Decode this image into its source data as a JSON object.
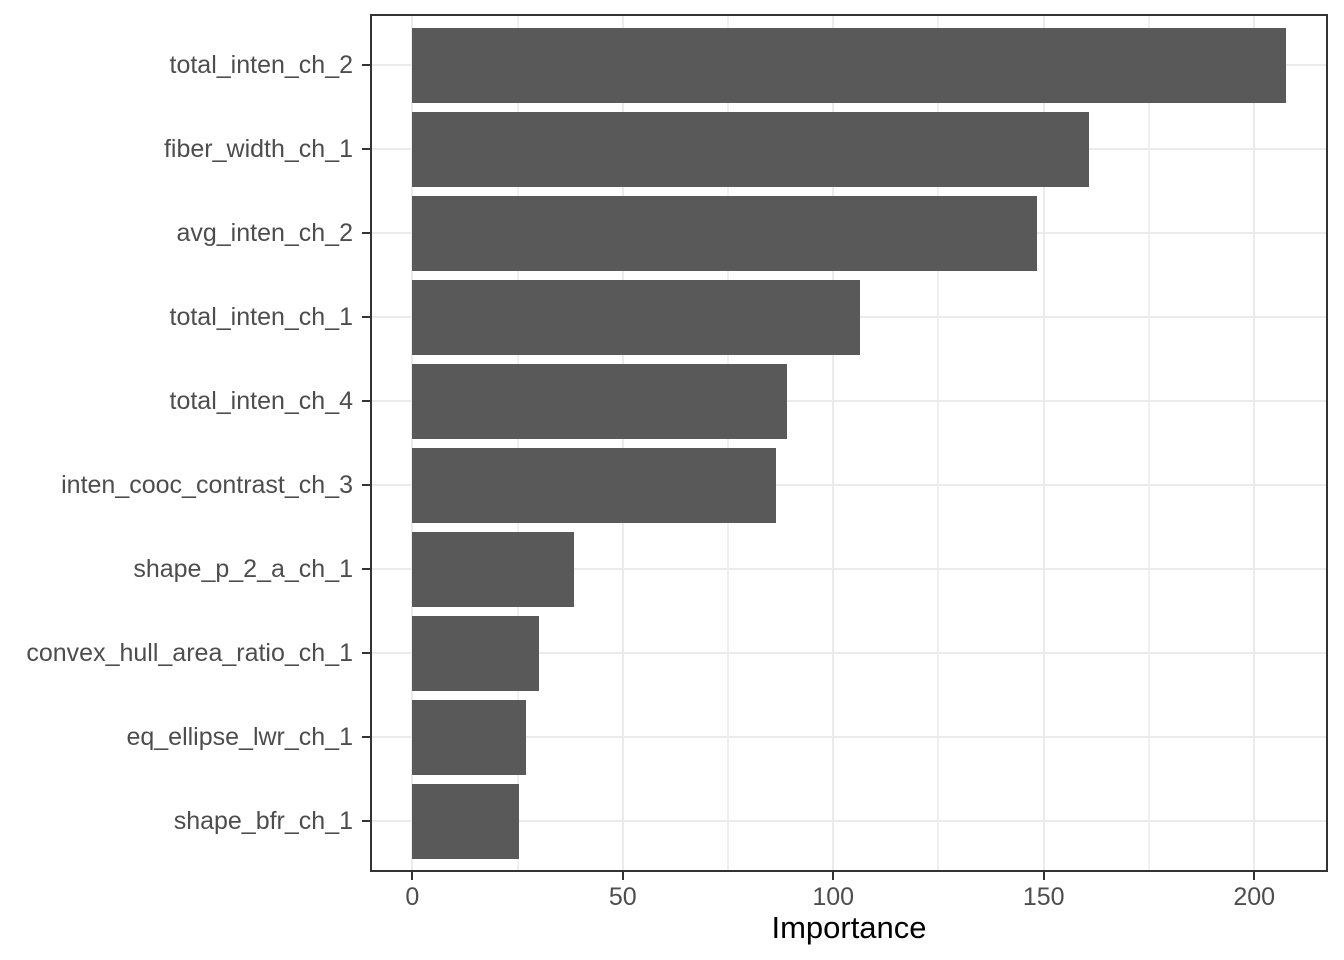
{
  "chart_data": {
    "type": "bar",
    "orientation": "horizontal",
    "title": "",
    "xlabel": "Importance",
    "ylabel": "",
    "categories": [
      "total_inten_ch_2",
      "fiber_width_ch_1",
      "avg_inten_ch_2",
      "total_inten_ch_1",
      "total_inten_ch_4",
      "inten_cooc_contrast_ch_3",
      "shape_p_2_a_ch_1",
      "convex_hull_area_ratio_ch_1",
      "eq_ellipse_lwr_ch_1",
      "shape_bfr_ch_1"
    ],
    "values": [
      207.6,
      160.8,
      148.4,
      106.4,
      89.0,
      86.4,
      38.4,
      30.0,
      27.1,
      25.3
    ],
    "x_ticks": [
      "0",
      "50",
      "100",
      "150",
      "200"
    ],
    "x_tick_values": [
      0,
      50,
      100,
      150,
      200
    ],
    "x_minor_tick_values": [
      25,
      75,
      125,
      175
    ],
    "xlim": [
      -10.5,
      217.7
    ],
    "grid": true,
    "legend": false,
    "colors": {
      "bar": "#595959",
      "grid_major": "#EBEBEB",
      "grid_minor": "#F0F0F0",
      "panel_border": "#333333",
      "tick": "#333333",
      "tick_label": "#4D4D4D",
      "axis_title": "#000000",
      "background": "#FFFFFF"
    }
  }
}
